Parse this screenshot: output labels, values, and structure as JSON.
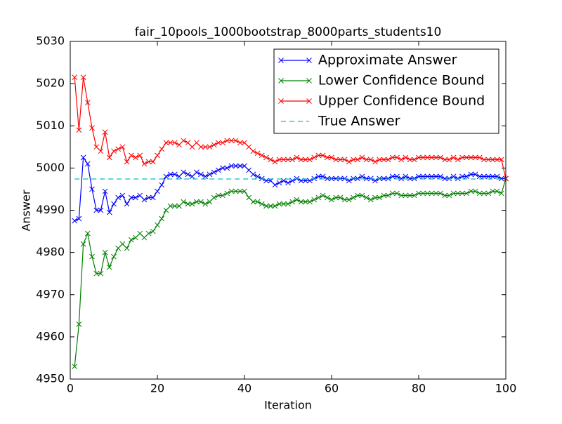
{
  "chart_data": {
    "type": "line",
    "title": "fair_10pools_1000bootstrap_8000parts_students10",
    "xlabel": "Iteration",
    "ylabel": "Answer",
    "x": [
      1,
      2,
      3,
      4,
      5,
      6,
      7,
      8,
      9,
      10,
      11,
      12,
      13,
      14,
      15,
      16,
      17,
      18,
      19,
      20,
      21,
      22,
      23,
      24,
      25,
      26,
      27,
      28,
      29,
      30,
      31,
      32,
      33,
      34,
      35,
      36,
      37,
      38,
      39,
      40,
      41,
      42,
      43,
      44,
      45,
      46,
      47,
      48,
      49,
      50,
      51,
      52,
      53,
      54,
      55,
      56,
      57,
      58,
      59,
      60,
      61,
      62,
      63,
      64,
      65,
      66,
      67,
      68,
      69,
      70,
      71,
      72,
      73,
      74,
      75,
      76,
      77,
      78,
      79,
      80,
      81,
      82,
      83,
      84,
      85,
      86,
      87,
      88,
      89,
      90,
      91,
      92,
      93,
      94,
      95,
      96,
      97,
      98,
      99,
      100
    ],
    "series": [
      {
        "name": "Approximate Answer",
        "color": "#0000ff",
        "marker": "x",
        "linestyle": "solid",
        "values": [
          4987.5,
          4988,
          5002.5,
          5001,
          4995,
          4990,
          4990,
          4994.5,
          4989.5,
          4991.5,
          4993,
          4993.5,
          4991.5,
          4993,
          4993,
          4993.5,
          4992.5,
          4993,
          4993,
          4994.5,
          4996,
          4998,
          4998.5,
          4998.5,
          4998,
          4999,
          4998.5,
          4998,
          4999,
          4998.5,
          4998,
          4998.5,
          4999,
          4999.5,
          5000,
          5000,
          5000.5,
          5000.5,
          5000.5,
          5000.5,
          4999.5,
          4998.5,
          4998,
          4997.5,
          4997,
          4997,
          4996,
          4996.5,
          4997,
          4996.5,
          4997,
          4997.5,
          4997,
          4997,
          4997,
          4997.5,
          4998,
          4998,
          4997.5,
          4997.5,
          4997.5,
          4997.5,
          4997.5,
          4997,
          4997.5,
          4997.5,
          4998,
          4997.5,
          4997.5,
          4997,
          4997.5,
          4997.5,
          4997.5,
          4998,
          4998,
          4997.5,
          4998,
          4997.5,
          4997.5,
          4998,
          4998,
          4998,
          4998,
          4998,
          4998,
          4997.5,
          4997.5,
          4998,
          4997.5,
          4998,
          4998,
          4998.5,
          4998.5,
          4998,
          4998,
          4998,
          4998,
          4998,
          4997.5,
          4997.5
        ]
      },
      {
        "name": "Lower Confidence Bound",
        "color": "#008000",
        "marker": "x",
        "linestyle": "solid",
        "values": [
          4953,
          4963,
          4982,
          4984.5,
          4979,
          4975,
          4975,
          4980,
          4976.5,
          4979,
          4981,
          4982,
          4981,
          4983,
          4983.5,
          4984.5,
          4983.5,
          4984.5,
          4985,
          4986.5,
          4988,
          4990,
          4991,
          4991,
          4991,
          4992,
          4991.5,
          4991.5,
          4992,
          4992,
          4991.5,
          4992,
          4993,
          4993.5,
          4993.5,
          4994,
          4994.5,
          4994.5,
          4994.5,
          4994.5,
          4993,
          4992,
          4992,
          4991.5,
          4991,
          4991,
          4991,
          4991.5,
          4991.5,
          4991.5,
          4992,
          4992.5,
          4992,
          4992,
          4992,
          4992.5,
          4993,
          4993.5,
          4993,
          4992.5,
          4993,
          4993,
          4992.5,
          4992.5,
          4993,
          4993.5,
          4993.5,
          4993,
          4992.5,
          4993,
          4993,
          4993.5,
          4993.5,
          4994,
          4994,
          4993.5,
          4993.5,
          4993.5,
          4993.5,
          4994,
          4994,
          4994,
          4994,
          4994,
          4994,
          4993.5,
          4993.5,
          4994,
          4994,
          4994,
          4994,
          4994.5,
          4994.5,
          4994,
          4994,
          4994,
          4994.5,
          4994.5,
          4994,
          4997.5
        ]
      },
      {
        "name": "Upper Confidence Bound",
        "color": "#ff0000",
        "marker": "x",
        "linestyle": "solid",
        "values": [
          5021.5,
          5009,
          5021.5,
          5015.5,
          5009.5,
          5005,
          5004,
          5008.5,
          5002.5,
          5004,
          5004.5,
          5005,
          5001.5,
          5003,
          5002.5,
          5003,
          5001,
          5001.5,
          5001.5,
          5003,
          5004.5,
          5006,
          5006,
          5006,
          5005.5,
          5006.5,
          5006,
          5005,
          5006,
          5005,
          5005,
          5005,
          5005.5,
          5006,
          5006,
          5006.5,
          5006.5,
          5006.5,
          5006,
          5006,
          5005,
          5004,
          5003.5,
          5003,
          5002.5,
          5002,
          5001.5,
          5002,
          5002,
          5002,
          5002,
          5002.5,
          5002,
          5002,
          5002,
          5002.5,
          5003,
          5003,
          5002.5,
          5002.5,
          5002,
          5002,
          5002,
          5001.5,
          5002,
          5002,
          5002.5,
          5002,
          5002,
          5001.5,
          5002,
          5002,
          5002,
          5002.5,
          5002.5,
          5002,
          5002.5,
          5002,
          5002,
          5002.5,
          5002.5,
          5002.5,
          5002.5,
          5002.5,
          5002.5,
          5002,
          5002,
          5002.5,
          5002,
          5002.5,
          5002.5,
          5002.5,
          5002.5,
          5002.5,
          5002,
          5002,
          5002,
          5002,
          5002,
          4997.5
        ]
      },
      {
        "name": "True Answer",
        "color": "#00bfbf",
        "marker": "none",
        "linestyle": "dashed",
        "values": [
          4997.4,
          4997.4,
          4997.4,
          4997.4,
          4997.4,
          4997.4,
          4997.4,
          4997.4,
          4997.4,
          4997.4,
          4997.4,
          4997.4,
          4997.4,
          4997.4,
          4997.4,
          4997.4,
          4997.4,
          4997.4,
          4997.4,
          4997.4,
          4997.4,
          4997.4,
          4997.4,
          4997.4,
          4997.4,
          4997.4,
          4997.4,
          4997.4,
          4997.4,
          4997.4,
          4997.4,
          4997.4,
          4997.4,
          4997.4,
          4997.4,
          4997.4,
          4997.4,
          4997.4,
          4997.4,
          4997.4,
          4997.4,
          4997.4,
          4997.4,
          4997.4,
          4997.4,
          4997.4,
          4997.4,
          4997.4,
          4997.4,
          4997.4,
          4997.4,
          4997.4,
          4997.4,
          4997.4,
          4997.4,
          4997.4,
          4997.4,
          4997.4,
          4997.4,
          4997.4,
          4997.4,
          4997.4,
          4997.4,
          4997.4,
          4997.4,
          4997.4,
          4997.4,
          4997.4,
          4997.4,
          4997.4,
          4997.4,
          4997.4,
          4997.4,
          4997.4,
          4997.4,
          4997.4,
          4997.4,
          4997.4,
          4997.4,
          4997.4,
          4997.4,
          4997.4,
          4997.4,
          4997.4,
          4997.4,
          4997.4,
          4997.4,
          4997.4,
          4997.4,
          4997.4,
          4997.4,
          4997.4,
          4997.4,
          4997.4,
          4997.4,
          4997.4,
          4997.4,
          4997.4,
          4997.4,
          4997.4
        ]
      }
    ],
    "xlim": [
      0,
      100
    ],
    "xticks": [
      0,
      20,
      40,
      60,
      80,
      100
    ],
    "ylim": [
      4950,
      5030
    ],
    "yticks": [
      4950,
      4960,
      4970,
      4980,
      4990,
      5000,
      5010,
      5020,
      5030
    ],
    "grid": false,
    "legend": "upper right"
  }
}
